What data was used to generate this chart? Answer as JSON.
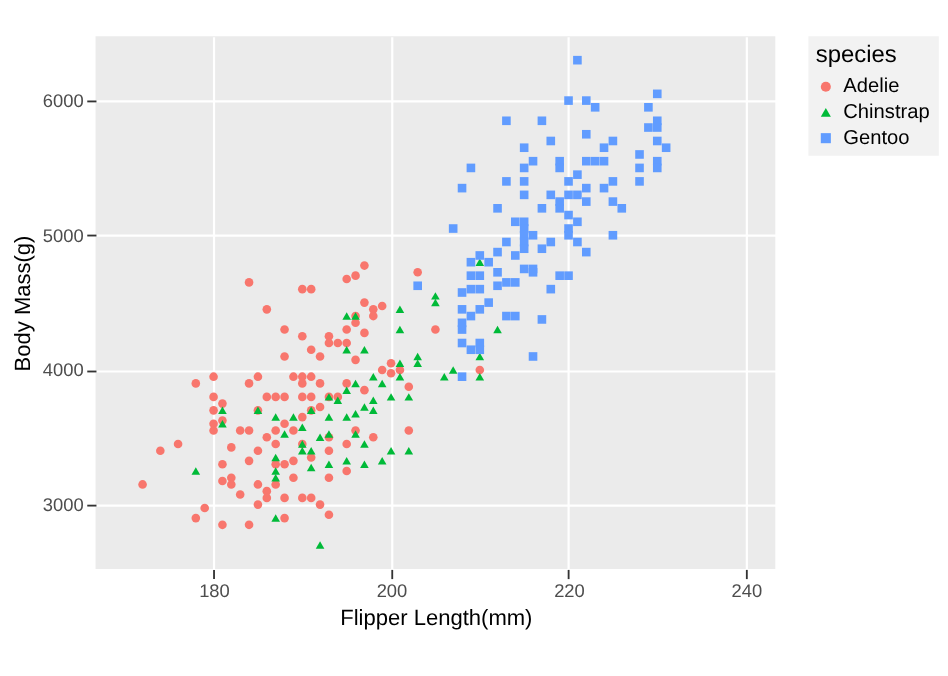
{
  "chart_data": {
    "type": "scatter",
    "xlabel": "Flipper Length(mm)",
    "ylabel": "Body Mass(g)",
    "legend_title": "species",
    "legend": "right",
    "grid": true,
    "xlim": [
      166.7,
      243.3
    ],
    "xticks": [
      180,
      200,
      220,
      240
    ],
    "ylim": [
      2522,
      6478
    ],
    "yticks": [
      3000,
      4000,
      5000,
      6000
    ],
    "series": [
      {
        "name": "Adelie",
        "color": "#f8766d",
        "marker": "circle",
        "x": [
          172,
          174,
          176,
          178,
          178,
          179,
          180,
          180,
          180,
          180,
          180,
          181,
          181,
          181,
          181,
          181,
          182,
          182,
          182,
          183,
          183,
          184,
          184,
          184,
          184,
          184,
          185,
          185,
          185,
          185,
          185,
          186,
          186,
          186,
          186,
          186,
          187,
          187,
          187,
          187,
          187,
          188,
          188,
          188,
          188,
          188,
          188,
          188,
          189,
          189,
          189,
          189,
          190,
          190,
          190,
          190,
          190,
          190,
          190,
          190,
          191,
          191,
          191,
          191,
          191,
          191,
          191,
          192,
          192,
          192,
          192,
          193,
          193,
          193,
          193,
          193,
          193,
          193,
          194,
          194,
          195,
          195,
          195,
          195,
          195,
          195,
          196,
          196,
          196,
          196,
          196,
          197,
          197,
          197,
          197,
          198,
          198,
          198,
          199,
          199,
          200,
          200,
          201,
          202,
          202,
          203,
          205,
          210
        ],
        "values": [
          3150,
          3400,
          3450,
          2900,
          3900,
          2975,
          3950,
          3800,
          3700,
          3600,
          3550,
          3750,
          3625,
          3300,
          3175,
          2850,
          3425,
          3200,
          3150,
          3550,
          3075,
          4650,
          3900,
          3550,
          3325,
          2850,
          3950,
          3700,
          3400,
          3150,
          3000,
          4450,
          3800,
          3500,
          3100,
          3050,
          3800,
          3550,
          3450,
          3300,
          3150,
          4300,
          4100,
          3800,
          3600,
          3300,
          2900,
          3050,
          3950,
          3550,
          3325,
          3200,
          4600,
          4250,
          3950,
          3900,
          3800,
          3650,
          3450,
          3050,
          4600,
          4150,
          3950,
          3800,
          3700,
          3350,
          3050,
          4100,
          3900,
          3725,
          3000,
          4250,
          4200,
          3800,
          3500,
          3400,
          3200,
          2925,
          4200,
          3800,
          4675,
          4300,
          4200,
          3900,
          3450,
          3250,
          4700,
          4400,
          4350,
          4075,
          3550,
          4775,
          4500,
          4275,
          3850,
          4450,
          4400,
          3500,
          4475,
          4000,
          4050,
          3975,
          4000,
          3875,
          3550,
          4725,
          4300,
          4000
        ]
      },
      {
        "name": "Chinstrap",
        "color": "#00ba38",
        "marker": "triangle",
        "x": [
          178,
          181,
          181,
          185,
          187,
          187,
          187,
          187,
          187,
          188,
          189,
          190,
          190,
          190,
          191,
          191,
          191,
          192,
          192,
          193,
          193,
          193,
          193,
          194,
          195,
          195,
          195,
          195,
          195,
          196,
          196,
          196,
          196,
          197,
          197,
          197,
          197,
          198,
          198,
          198,
          199,
          199,
          200,
          200,
          201,
          201,
          201,
          201,
          202,
          202,
          203,
          203,
          205,
          205,
          206,
          207,
          210,
          210,
          210,
          212
        ],
        "values": [
          3250,
          3700,
          3600,
          3700,
          3650,
          3350,
          3250,
          3200,
          2900,
          3525,
          3650,
          3450,
          3400,
          3575,
          3700,
          3400,
          3275,
          2700,
          3500,
          3800,
          3650,
          3525,
          3300,
          3775,
          4400,
          4150,
          3850,
          3650,
          3325,
          4400,
          3900,
          3675,
          3525,
          4150,
          3725,
          3450,
          3300,
          3950,
          3700,
          3775,
          3900,
          3325,
          3800,
          3400,
          4450,
          4300,
          4050,
          3950,
          3800,
          3400,
          4100,
          4050,
          4550,
          4500,
          3950,
          4000,
          4800,
          4100,
          3950,
          4300
        ]
      },
      {
        "name": "Gentoo",
        "color": "#619cff",
        "marker": "square",
        "x": [
          203,
          207,
          208,
          208,
          208,
          208,
          208,
          208,
          208,
          209,
          209,
          209,
          209,
          209,
          209,
          210,
          210,
          210,
          210,
          210,
          210,
          211,
          211,
          212,
          212,
          212,
          212,
          213,
          213,
          213,
          213,
          213,
          214,
          214,
          214,
          214,
          215,
          215,
          215,
          215,
          215,
          215,
          215,
          215,
          215,
          215,
          216,
          216,
          216,
          216,
          216,
          217,
          217,
          217,
          217,
          218,
          218,
          218,
          218,
          219,
          219,
          219,
          219,
          219,
          220,
          220,
          220,
          220,
          220,
          220,
          220,
          221,
          221,
          221,
          221,
          221,
          222,
          222,
          222,
          222,
          222,
          222,
          223,
          223,
          224,
          224,
          224,
          225,
          225,
          225,
          225,
          226,
          228,
          228,
          228,
          229,
          229,
          230,
          230,
          230,
          230,
          230,
          230,
          231
        ],
        "values": [
          4625,
          5050,
          5350,
          4575,
          4450,
          4350,
          4300,
          4200,
          3950,
          5500,
          4800,
          4700,
          4600,
          4400,
          4150,
          4850,
          4700,
          4600,
          4450,
          4200,
          4150,
          4500,
          4800,
          4875,
          4725,
          4625,
          5200,
          5850,
          5400,
          4950,
          4650,
          4400,
          4650,
          4850,
          4400,
          5100,
          5650,
          5500,
          5400,
          5300,
          5100,
          5050,
          5000,
          4950,
          4750,
          4900,
          5550,
          5000,
          4750,
          4725,
          4100,
          5850,
          5200,
          4900,
          4375,
          5700,
          5300,
          4950,
          4600,
          5550,
          5500,
          5250,
          5200,
          4700,
          6000,
          5400,
          5300,
          5050,
          5000,
          4700,
          5150,
          6300,
          5450,
          5300,
          5100,
          4950,
          6000,
          5750,
          5550,
          5350,
          5250,
          4875,
          5950,
          5550,
          5550,
          5350,
          5650,
          5700,
          5400,
          5250,
          5000,
          5200,
          5600,
          5500,
          5400,
          5950,
          5800,
          6050,
          5850,
          5800,
          5700,
          5550,
          5500,
          5650
        ]
      }
    ]
  }
}
